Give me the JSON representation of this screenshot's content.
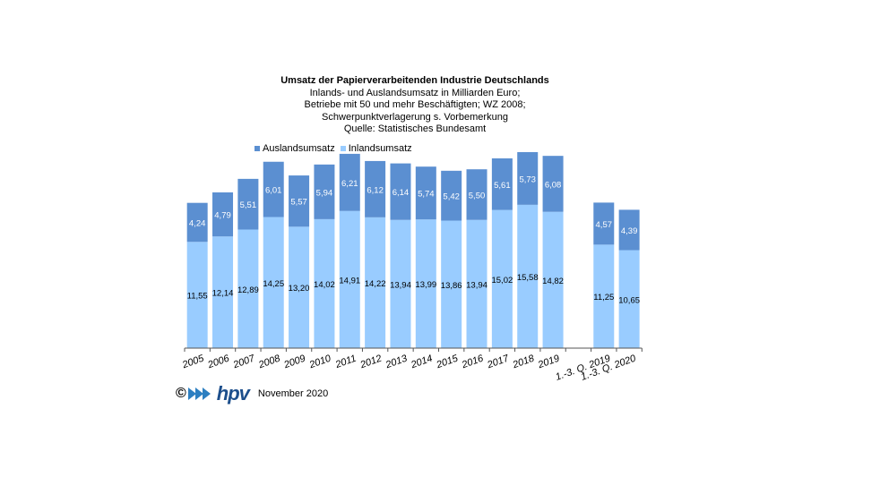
{
  "colors": {
    "ausland": "#5b8fd1",
    "inland": "#99ccff",
    "axis": "#555555"
  },
  "footer": {
    "copyright": "©",
    "logo": "hpv",
    "date": "November 2020"
  },
  "chart_data": {
    "type": "bar",
    "stacked": true,
    "title": "Umsatz der Papierverarbeitenden Industrie Deutschlands",
    "subtitle": [
      "Inlands- und Auslandsumsatz in Milliarden Euro;",
      "Betriebe mit 50 und mehr Beschäftigten;  WZ 2008;",
      "Schwerpunktverlagerung   s. Vorbemerkung",
      "Quelle:  Statistisches Bundesamt"
    ],
    "legend": {
      "position": "top-left",
      "entries": [
        "Auslandsumsatz",
        "Inlandsumsatz"
      ]
    },
    "categories": [
      "2005",
      "2006",
      "2007",
      "2008",
      "2009",
      "2010",
      "2011",
      "2012",
      "2013",
      "2014",
      "2015",
      "2016",
      "2017",
      "2018",
      "2019",
      "",
      "1.-3. Q. 2019",
      "1.-3. Q. 2020"
    ],
    "series": [
      {
        "name": "Inlandsumsatz",
        "values": [
          11.55,
          12.14,
          12.89,
          14.25,
          13.2,
          14.02,
          14.91,
          14.22,
          13.94,
          13.99,
          13.86,
          13.94,
          15.02,
          15.58,
          14.82,
          null,
          11.25,
          10.65
        ],
        "labels": [
          "11,55",
          "12,14",
          "12,89",
          "14,25",
          "13,20",
          "14,02",
          "14,91",
          "14,22",
          "13,94",
          "13,99",
          "13,86",
          "13,94",
          "15,02",
          "15,58",
          "14,82",
          "",
          "11,25",
          "10,65"
        ]
      },
      {
        "name": "Auslandsumsatz",
        "values": [
          4.24,
          4.79,
          5.51,
          6.01,
          5.57,
          5.94,
          6.21,
          6.12,
          6.14,
          5.74,
          5.42,
          5.5,
          5.61,
          5.73,
          6.08,
          null,
          4.57,
          4.39
        ],
        "labels": [
          "4,24",
          "4,79",
          "5,51",
          "6,01",
          "5,57",
          "5,94",
          "6,21",
          "6,12",
          "6,14",
          "5,74",
          "5,42",
          "5,50",
          "5,61",
          "5,73",
          "6,08",
          "",
          "4,57",
          "4,39"
        ]
      }
    ],
    "ylim": [
      0,
      21.5
    ],
    "grid": false
  }
}
